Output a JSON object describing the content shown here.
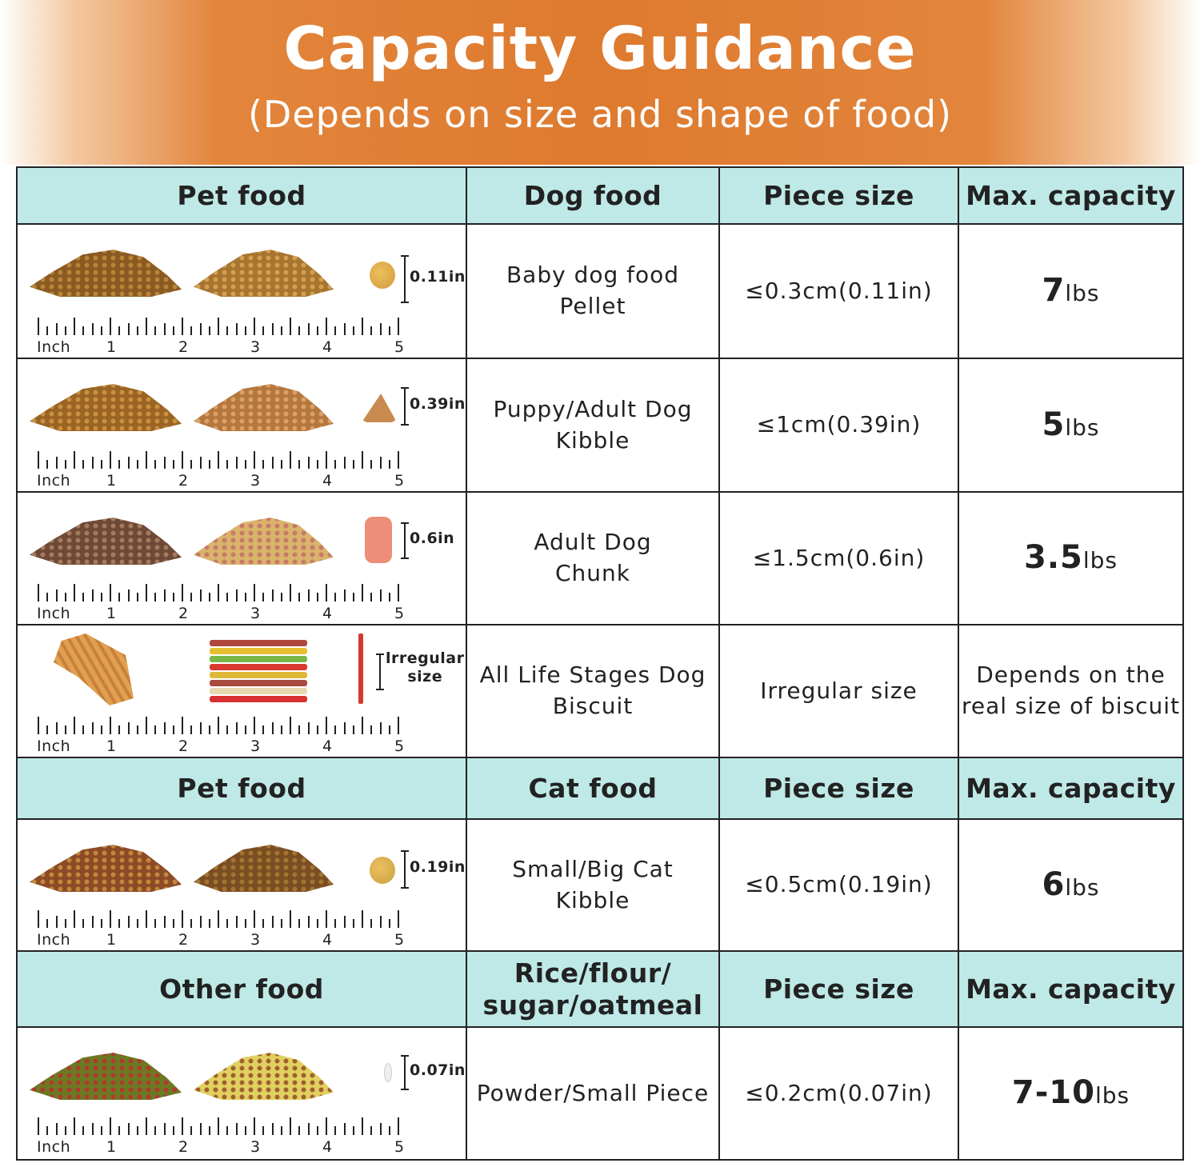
{
  "banner": {
    "title": "Capacity Guidance",
    "subtitle": "(Depends on size and shape of food)"
  },
  "colors": {
    "banner_orange": "#de7a2e",
    "header_teal": "#bfe9e6",
    "border": "#222222"
  },
  "ruler": {
    "unit": "Inch",
    "labels": [
      "1",
      "2",
      "3",
      "4",
      "5"
    ]
  },
  "sections": [
    {
      "header": [
        "Pet food",
        "Dog food",
        "Piece size",
        "Max. capacity"
      ],
      "rows": [
        {
          "piece_label": "0.11in",
          "food": "Baby dog food\nPellet",
          "piece_size": "≤0.3cm(0.11in)",
          "capacity": "7",
          "unit": "lbs"
        },
        {
          "piece_label": "0.39in",
          "food": "Puppy/Adult Dog\nKibble",
          "piece_size": "≤1cm(0.39in)",
          "capacity": "5",
          "unit": "lbs"
        },
        {
          "piece_label": "0.6in",
          "food": "Adult Dog\nChunk",
          "piece_size": "≤1.5cm(0.6in)",
          "capacity": "3.5",
          "unit": "lbs"
        },
        {
          "piece_label": "lrregular\nsize",
          "food": "All Life Stages Dog\nBiscuit",
          "piece_size": "Irregular size",
          "capacity_text": "Depends on the\nreal size of biscuit"
        }
      ]
    },
    {
      "header": [
        "Pet food",
        "Cat food",
        "Piece size",
        "Max. capacity"
      ],
      "rows": [
        {
          "piece_label": "0.19in",
          "food": "Small/Big Cat\nKibble",
          "piece_size": "≤0.5cm(0.19in)",
          "capacity": "6",
          "unit": "lbs"
        }
      ]
    },
    {
      "header": [
        "Other food",
        "Rice/flour/\nsugar/oatmeal",
        "Piece size",
        "Max. capacity"
      ],
      "rows": [
        {
          "piece_label": "0.07in",
          "food": "Powder/Small Piece",
          "piece_size": "≤0.2cm(0.07in)",
          "capacity": "7-10",
          "unit": "lbs"
        }
      ]
    }
  ]
}
